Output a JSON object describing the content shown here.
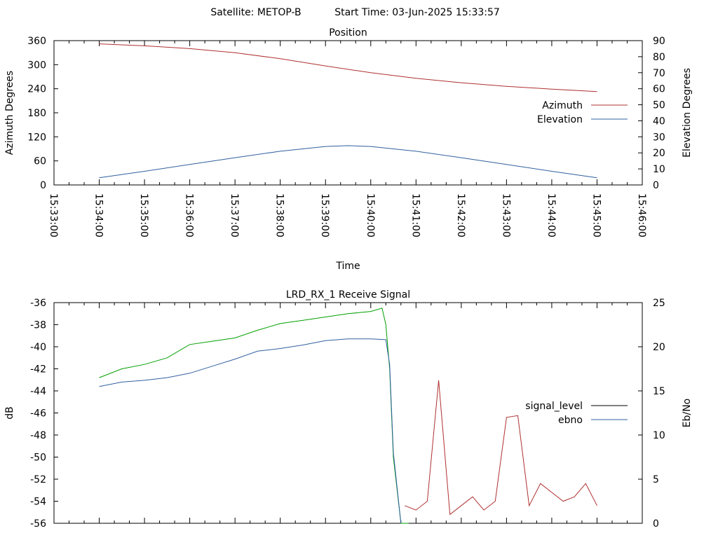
{
  "header": {
    "satellite": "Satellite: METOP-B",
    "start_time": "Start Time: 03-Jun-2025 15:33:57"
  },
  "chart_data": [
    {
      "type": "line",
      "title": "Position",
      "xlabel": "Time",
      "ylabel": "Azimuth Degrees",
      "y2label": "Elevation Degrees",
      "xlim": [
        "15:33:00",
        "15:46:00"
      ],
      "ylim": [
        0,
        360
      ],
      "y2lim": [
        0,
        90
      ],
      "x_ticks": [
        "15:33:00",
        "15:34:00",
        "15:35:00",
        "15:36:00",
        "15:37:00",
        "15:38:00",
        "15:39:00",
        "15:40:00",
        "15:41:00",
        "15:42:00",
        "15:43:00",
        "15:44:00",
        "15:45:00",
        "15:46:00"
      ],
      "y_ticks": [
        0,
        60,
        120,
        180,
        240,
        300,
        360
      ],
      "y2_ticks": [
        0,
        10,
        20,
        30,
        40,
        50,
        60,
        70,
        80,
        90
      ],
      "legend_position": "right",
      "series": [
        {
          "name": "Azimuth",
          "axis": "left",
          "color": "#b03030",
          "x": [
            "15:34:00",
            "15:35:00",
            "15:36:00",
            "15:37:00",
            "15:38:00",
            "15:39:00",
            "15:40:00",
            "15:41:00",
            "15:42:00",
            "15:43:00",
            "15:44:00",
            "15:45:00"
          ],
          "y": [
            352,
            347,
            340,
            330,
            315,
            297,
            280,
            266,
            255,
            246,
            239,
            233
          ]
        },
        {
          "name": "Elevation",
          "axis": "right",
          "color": "#3060a0",
          "x": [
            "15:34:00",
            "15:35:00",
            "15:36:00",
            "15:37:00",
            "15:38:00",
            "15:39:00",
            "15:39:30",
            "15:40:00",
            "15:41:00",
            "15:42:00",
            "15:43:00",
            "15:44:00",
            "15:45:00"
          ],
          "y": [
            4.5,
            8.5,
            12.8,
            17,
            21,
            24,
            24.5,
            24,
            21,
            17,
            12.8,
            8.5,
            4.5
          ]
        }
      ]
    },
    {
      "type": "line",
      "title": "LRD_RX_1 Receive Signal",
      "xlabel": "",
      "ylabel": "dB",
      "y2label": "Eb/No",
      "xlim": [
        "15:33:00",
        "15:46:00"
      ],
      "ylim": [
        -56,
        -36
      ],
      "y2lim": [
        0,
        25
      ],
      "y_ticks": [
        -56,
        -54,
        -52,
        -50,
        -48,
        -46,
        -44,
        -42,
        -40,
        -38,
        -36
      ],
      "y2_ticks": [
        0,
        5,
        10,
        15,
        20,
        25
      ],
      "legend_position": "right",
      "series": [
        {
          "name": "signal_level",
          "axis": "left",
          "color": "#00a000",
          "x": [
            "15:34:00",
            "15:34:30",
            "15:35:00",
            "15:35:30",
            "15:36:00",
            "15:36:30",
            "15:37:00",
            "15:37:30",
            "15:38:00",
            "15:38:30",
            "15:39:00",
            "15:39:30",
            "15:40:00",
            "15:40:15",
            "15:40:20",
            "15:40:25",
            "15:40:30",
            "15:40:40",
            "15:40:50"
          ],
          "y": [
            -42.8,
            -42.0,
            -41.6,
            -41.0,
            -39.8,
            -39.5,
            -39.2,
            -38.5,
            -37.9,
            -37.6,
            -37.3,
            -37.0,
            -36.8,
            -36.5,
            -38.0,
            -42.0,
            -50.0,
            -56.0,
            -56.0
          ]
        },
        {
          "name": "ebno",
          "axis": "right",
          "color": "#3060a0",
          "x": [
            "15:34:00",
            "15:34:30",
            "15:35:00",
            "15:35:30",
            "15:36:00",
            "15:36:30",
            "15:37:00",
            "15:37:30",
            "15:38:00",
            "15:38:30",
            "15:39:00",
            "15:39:30",
            "15:40:00",
            "15:40:20",
            "15:40:25",
            "15:40:30",
            "15:40:40"
          ],
          "y": [
            15.5,
            16.0,
            16.2,
            16.5,
            17.0,
            17.8,
            18.6,
            19.5,
            19.8,
            20.2,
            20.7,
            20.9,
            20.9,
            20.8,
            18.0,
            8.0,
            0.0
          ]
        },
        {
          "name": "",
          "axis": "right",
          "color": "#b03030",
          "x": [
            "15:40:45",
            "15:41:00",
            "15:41:15",
            "15:41:30",
            "15:41:45",
            "15:42:00",
            "15:42:15",
            "15:42:30",
            "15:42:45",
            "15:43:00",
            "15:43:15",
            "15:43:30",
            "15:43:45",
            "15:44:00",
            "15:44:15",
            "15:44:30",
            "15:44:45",
            "15:45:00"
          ],
          "y": [
            2.0,
            1.5,
            2.5,
            16.2,
            1.0,
            2.0,
            3.0,
            1.5,
            2.5,
            12.0,
            12.2,
            2.0,
            4.5,
            3.5,
            2.5,
            3.0,
            4.5,
            2.0
          ]
        }
      ]
    }
  ]
}
